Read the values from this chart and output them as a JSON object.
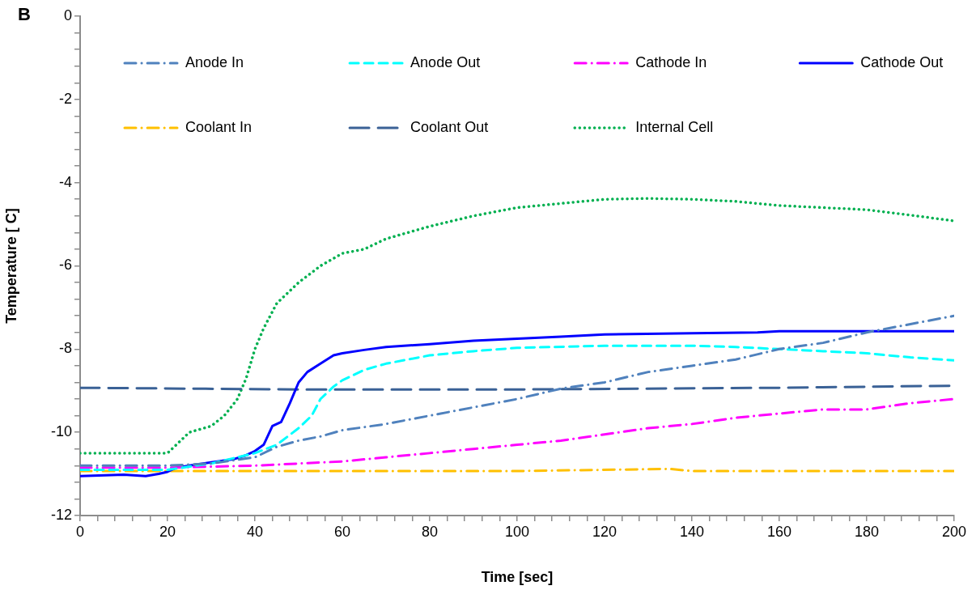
{
  "chart_data": {
    "type": "line",
    "xlabel": "Time [sec]",
    "ylabel": "Temperature [ C]",
    "annotations": [
      "B"
    ],
    "xlim": [
      0,
      200
    ],
    "ylim": [
      -12,
      0
    ],
    "xticks": [
      0,
      {
        "value": 4,
        "label": null
      },
      {
        "value": 8,
        "label": null
      },
      {
        "value": 12,
        "label": null
      },
      {
        "value": 16,
        "label": null
      },
      20,
      {
        "value": 24,
        "label": null
      },
      {
        "value": 28,
        "label": null
      },
      {
        "value": 32,
        "label": null
      },
      {
        "value": 36,
        "label": null
      },
      40,
      {
        "value": 44,
        "label": null
      },
      {
        "value": 48,
        "label": null
      },
      {
        "value": 52,
        "label": null
      },
      {
        "value": 56,
        "label": null
      },
      60,
      {
        "value": 64,
        "label": null
      },
      {
        "value": 68,
        "label": null
      },
      {
        "value": 72,
        "label": null
      },
      {
        "value": 76,
        "label": null
      },
      80,
      {
        "value": 84,
        "label": null
      },
      {
        "value": 88,
        "label": null
      },
      {
        "value": 92,
        "label": null
      },
      {
        "value": 96,
        "label": null
      },
      100,
      {
        "value": 104,
        "label": null
      },
      {
        "value": 108,
        "label": null
      },
      {
        "value": 112,
        "label": null
      },
      {
        "value": 116,
        "label": null
      },
      120,
      {
        "value": 124,
        "label": null
      },
      {
        "value": 128,
        "label": null
      },
      {
        "value": 132,
        "label": null
      },
      {
        "value": 136,
        "label": null
      },
      140,
      {
        "value": 144,
        "label": null
      },
      {
        "value": 148,
        "label": null
      },
      {
        "value": 152,
        "label": null
      },
      {
        "value": 156,
        "label": null
      },
      160,
      {
        "value": 164,
        "label": null
      },
      {
        "value": 168,
        "label": null
      },
      {
        "value": 172,
        "label": null
      },
      {
        "value": 176,
        "label": null
      },
      180,
      {
        "value": 184,
        "label": null
      },
      {
        "value": 188,
        "label": null
      },
      {
        "value": 192,
        "label": null
      },
      {
        "value": 196,
        "label": null
      },
      200
    ],
    "yticks": [
      -12,
      {
        "value": -11.6,
        "label": null
      },
      {
        "value": -11.2,
        "label": null
      },
      {
        "value": -10.8,
        "label": null
      },
      {
        "value": -10.4,
        "label": null
      },
      -10,
      {
        "value": -9.6,
        "label": null
      },
      {
        "value": -9.2,
        "label": null
      },
      {
        "value": -8.8,
        "label": null
      },
      {
        "value": -8.4,
        "label": null
      },
      -8,
      {
        "value": -7.6,
        "label": null
      },
      {
        "value": -7.2,
        "label": null
      },
      {
        "value": -6.8,
        "label": null
      },
      {
        "value": -6.4,
        "label": null
      },
      -6,
      {
        "value": -5.6,
        "label": null
      },
      {
        "value": -5.2,
        "label": null
      },
      {
        "value": -4.8,
        "label": null
      },
      {
        "value": -4.4,
        "label": null
      },
      -4,
      {
        "value": -3.6,
        "label": null
      },
      {
        "value": -3.2,
        "label": null
      },
      {
        "value": -2.8,
        "label": null
      },
      {
        "value": -2.4,
        "label": null
      },
      -2,
      {
        "value": -1.6,
        "label": null
      },
      {
        "value": -1.2,
        "label": null
      },
      {
        "value": -0.8,
        "label": null
      },
      {
        "value": -0.4,
        "label": null
      },
      0
    ],
    "grid": false,
    "legend": "top",
    "marker": "none",
    "series": [
      {
        "name": "Anode In",
        "color": "#4f81bd",
        "line_style": "dashdot",
        "x": [
          0,
          20,
          30,
          40,
          45,
          50,
          55,
          60,
          70,
          80,
          90,
          100,
          110,
          120,
          130,
          140,
          150,
          160,
          170,
          180,
          190,
          200
        ],
        "values": [
          -10.8,
          -10.8,
          -10.75,
          -10.6,
          -10.35,
          -10.2,
          -10.1,
          -9.95,
          -9.8,
          -9.6,
          -9.4,
          -9.2,
          -8.95,
          -8.8,
          -8.55,
          -8.4,
          -8.25,
          -8.0,
          -7.85,
          -7.6,
          -7.4,
          -7.2
        ]
      },
      {
        "name": "Anode Out",
        "color": "#00ffff",
        "line_style": "dashed",
        "x": [
          0,
          20,
          30,
          40,
          45,
          50,
          53,
          55,
          58,
          60,
          65,
          70,
          80,
          90,
          100,
          120,
          140,
          150,
          160,
          170,
          180,
          190,
          200
        ],
        "values": [
          -10.9,
          -10.9,
          -10.75,
          -10.5,
          -10.3,
          -9.9,
          -9.6,
          -9.2,
          -8.9,
          -8.75,
          -8.5,
          -8.35,
          -8.15,
          -8.05,
          -7.97,
          -7.92,
          -7.92,
          -7.95,
          -8.0,
          -8.05,
          -8.1,
          -8.2,
          -8.27
        ]
      },
      {
        "name": "Cathode In",
        "color": "#ff00ff",
        "line_style": "dashdot",
        "x": [
          0,
          20,
          40,
          60,
          70,
          80,
          90,
          100,
          110,
          120,
          130,
          140,
          150,
          160,
          170,
          180,
          190,
          200
        ],
        "values": [
          -10.85,
          -10.85,
          -10.8,
          -10.7,
          -10.6,
          -10.5,
          -10.4,
          -10.3,
          -10.2,
          -10.05,
          -9.9,
          -9.8,
          -9.65,
          -9.55,
          -9.45,
          -9.45,
          -9.3,
          -9.2
        ]
      },
      {
        "name": "Cathode Out",
        "color": "#0000ff",
        "line_style": "solid",
        "x": [
          0,
          10,
          15,
          18,
          20,
          22,
          25,
          30,
          35,
          38,
          40,
          42,
          44,
          46,
          48,
          50,
          52,
          55,
          58,
          60,
          65,
          70,
          80,
          90,
          100,
          110,
          120,
          140,
          155,
          160,
          180,
          200
        ],
        "values": [
          -11.05,
          -11.02,
          -11.05,
          -11.0,
          -10.95,
          -10.85,
          -10.8,
          -10.72,
          -10.65,
          -10.55,
          -10.45,
          -10.3,
          -9.85,
          -9.75,
          -9.3,
          -8.8,
          -8.55,
          -8.35,
          -8.15,
          -8.1,
          -8.02,
          -7.95,
          -7.88,
          -7.8,
          -7.75,
          -7.7,
          -7.65,
          -7.62,
          -7.6,
          -7.57,
          -7.57,
          -7.57
        ]
      },
      {
        "name": "Coolant In",
        "color": "#ffc000",
        "line_style": "dashdot",
        "x": [
          0,
          50,
          100,
          135,
          140,
          200
        ],
        "values": [
          -10.93,
          -10.93,
          -10.93,
          -10.88,
          -10.93,
          -10.93
        ]
      },
      {
        "name": "Coolant Out",
        "color": "#3a6196",
        "line_style": "longdash",
        "x": [
          0,
          50,
          100,
          160,
          200
        ],
        "values": [
          -8.93,
          -8.97,
          -8.97,
          -8.93,
          -8.88
        ]
      },
      {
        "name": "Internal Cell",
        "color": "#00b050",
        "line_style": "dotted",
        "x": [
          0,
          20,
          22,
          25,
          30,
          33,
          36,
          38,
          40,
          42,
          45,
          50,
          55,
          60,
          65,
          70,
          80,
          90,
          100,
          110,
          120,
          130,
          140,
          150,
          160,
          170,
          180,
          190,
          200
        ],
        "values": [
          -10.5,
          -10.5,
          -10.3,
          -10.0,
          -9.85,
          -9.6,
          -9.2,
          -8.7,
          -8.0,
          -7.5,
          -6.9,
          -6.4,
          -6.0,
          -5.7,
          -5.6,
          -5.35,
          -5.05,
          -4.8,
          -4.6,
          -4.5,
          -4.4,
          -4.38,
          -4.4,
          -4.45,
          -4.55,
          -4.6,
          -4.65,
          -4.78,
          -4.92
        ]
      }
    ]
  }
}
